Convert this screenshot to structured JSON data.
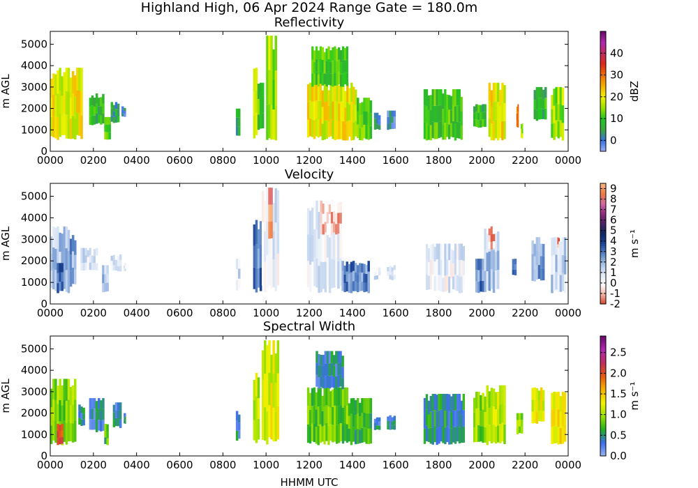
{
  "figure": {
    "title": "Highland High, 06 Apr 2024 Range Gate = 180.0m",
    "xlabel": "HHMM UTC"
  },
  "chart_data": [
    {
      "type": "heatmap",
      "title": "Reflectivity",
      "ylabel": "m AGL",
      "xlabel": "",
      "xtick_labels": [
        "0000",
        "0200",
        "0400",
        "0600",
        "0800",
        "1000",
        "1200",
        "1400",
        "1600",
        "1800",
        "2000",
        "2200",
        "0000"
      ],
      "ytick_labels": [
        "0",
        "1000",
        "2000",
        "3000",
        "4000",
        "5000"
      ],
      "xlim_hours": [
        0,
        24
      ],
      "ylim": [
        0,
        5600
      ],
      "colorbar": {
        "label": "dBZ",
        "ticks": [
          "0",
          "10",
          "20",
          "30",
          "40"
        ],
        "range": [
          -5,
          50
        ],
        "colormap": [
          "#9bb3f5",
          "#3b6fe8",
          "#3aa83a",
          "#22c722",
          "#9ae000",
          "#f2f200",
          "#f5b000",
          "#f07000",
          "#dd2a1a",
          "#c02d5e",
          "#b02ab0",
          "#6a0a6a"
        ]
      },
      "cells": [
        {
          "t0": 0.0,
          "t1": 1.5,
          "h0": 500,
          "h1": 3900,
          "v": 20
        },
        {
          "t0": 1.8,
          "t1": 2.5,
          "h0": 1200,
          "h1": 2700,
          "v": 8
        },
        {
          "t0": 2.5,
          "t1": 2.8,
          "h0": 500,
          "h1": 1600,
          "v": 12
        },
        {
          "t0": 2.8,
          "t1": 3.2,
          "h0": 1300,
          "h1": 2300,
          "v": 5
        },
        {
          "t0": 3.3,
          "t1": 3.5,
          "h0": 1600,
          "h1": 2100,
          "v": 0
        },
        {
          "t0": 8.6,
          "t1": 8.8,
          "h0": 700,
          "h1": 2200,
          "v": 5
        },
        {
          "t0": 9.4,
          "t1": 9.6,
          "h0": 500,
          "h1": 3900,
          "v": 15
        },
        {
          "t0": 9.6,
          "t1": 9.9,
          "h0": 900,
          "h1": 3200,
          "v": 10
        },
        {
          "t0": 10.0,
          "t1": 10.5,
          "h0": 500,
          "h1": 5400,
          "v": 15
        },
        {
          "t0": 11.9,
          "t1": 14.2,
          "h0": 500,
          "h1": 3200,
          "v": 20
        },
        {
          "t0": 12.1,
          "t1": 13.8,
          "h0": 3000,
          "h1": 4900,
          "v": 10
        },
        {
          "t0": 14.2,
          "t1": 14.9,
          "h0": 500,
          "h1": 2500,
          "v": 12
        },
        {
          "t0": 15.0,
          "t1": 15.3,
          "h0": 1000,
          "h1": 1800,
          "v": 3
        },
        {
          "t0": 15.6,
          "t1": 16.0,
          "h0": 1000,
          "h1": 1900,
          "v": 0
        },
        {
          "t0": 17.3,
          "t1": 19.1,
          "h0": 500,
          "h1": 2900,
          "v": 10
        },
        {
          "t0": 19.6,
          "t1": 20.2,
          "h0": 1100,
          "h1": 2200,
          "v": 8
        },
        {
          "t0": 20.3,
          "t1": 21.1,
          "h0": 500,
          "h1": 3200,
          "v": 20
        },
        {
          "t0": 21.6,
          "t1": 21.7,
          "h0": 1100,
          "h1": 2200,
          "v": 30
        },
        {
          "t0": 21.8,
          "t1": 21.9,
          "h0": 600,
          "h1": 1300,
          "v": 15
        },
        {
          "t0": 22.4,
          "t1": 23.0,
          "h0": 1400,
          "h1": 3000,
          "v": 8
        },
        {
          "t0": 23.2,
          "t1": 23.8,
          "h0": 500,
          "h1": 3000,
          "v": 15
        }
      ]
    },
    {
      "type": "heatmap",
      "title": "Velocity",
      "ylabel": "m AGL",
      "xlabel": "",
      "xtick_labels": [
        "0000",
        "0200",
        "0400",
        "0600",
        "0800",
        "1000",
        "1200",
        "1400",
        "1600",
        "1800",
        "2000",
        "2200",
        "0000"
      ],
      "ytick_labels": [
        "0",
        "1000",
        "2000",
        "3000",
        "4000",
        "5000"
      ],
      "xlim_hours": [
        0,
        24
      ],
      "ylim": [
        0,
        5600
      ],
      "colorbar": {
        "label": "m s⁻¹",
        "ticks": [
          "-2",
          "-1",
          "0",
          "1",
          "2",
          "3",
          "4",
          "5",
          "6",
          "7",
          "8",
          "9"
        ],
        "range": [
          -2,
          9.5
        ],
        "colormap": [
          "#d9422a",
          "#f3b8aa",
          "#ffffff",
          "#dce6f5",
          "#a8c1e6",
          "#5a85c6",
          "#1c4598",
          "#0d2a66",
          "#4a2260",
          "#8c2a80",
          "#d26aa6",
          "#ee7a40",
          "#f8b888"
        ]
      },
      "cells": [
        {
          "t0": 0.0,
          "t1": 0.9,
          "h0": 500,
          "h1": 3600,
          "v": 1.5
        },
        {
          "t0": 0.3,
          "t1": 0.6,
          "h0": 500,
          "h1": 1900,
          "v": 3.2
        },
        {
          "t0": 0.9,
          "t1": 1.2,
          "h0": 800,
          "h1": 3200,
          "v": 2.2
        },
        {
          "t0": 1.4,
          "t1": 2.2,
          "h0": 1500,
          "h1": 2600,
          "v": 0.8
        },
        {
          "t0": 2.4,
          "t1": 2.7,
          "h0": 500,
          "h1": 1800,
          "v": 1.5
        },
        {
          "t0": 2.8,
          "t1": 3.3,
          "h0": 1500,
          "h1": 2300,
          "v": 0.6
        },
        {
          "t0": 3.4,
          "t1": 3.5,
          "h0": 1500,
          "h1": 1900,
          "v": 0.6
        },
        {
          "t0": 8.6,
          "t1": 8.8,
          "h0": 600,
          "h1": 2100,
          "v": 0.8
        },
        {
          "t0": 9.4,
          "t1": 9.8,
          "h0": 500,
          "h1": 3900,
          "v": 3.0
        },
        {
          "t0": 9.8,
          "t1": 10.6,
          "h0": 500,
          "h1": 5400,
          "v": 0.6
        },
        {
          "t0": 10.1,
          "t1": 10.3,
          "h0": 3000,
          "h1": 5400,
          "v": 8.5
        },
        {
          "t0": 11.9,
          "t1": 13.5,
          "h0": 500,
          "h1": 4800,
          "v": 0.7
        },
        {
          "t0": 13.5,
          "t1": 14.8,
          "h0": 500,
          "h1": 2000,
          "v": 2.8
        },
        {
          "t0": 12.5,
          "t1": 13.5,
          "h0": 3200,
          "h1": 4800,
          "v": -0.6
        },
        {
          "t0": 15.0,
          "t1": 15.3,
          "h0": 1100,
          "h1": 1700,
          "v": 0.8
        },
        {
          "t0": 15.6,
          "t1": 16.0,
          "h0": 1100,
          "h1": 1800,
          "v": 0.8
        },
        {
          "t0": 17.4,
          "t1": 19.2,
          "h0": 500,
          "h1": 2800,
          "v": 0.6
        },
        {
          "t0": 19.7,
          "t1": 20.1,
          "h0": 500,
          "h1": 2100,
          "v": 2.8
        },
        {
          "t0": 20.1,
          "t1": 20.8,
          "h0": 500,
          "h1": 3500,
          "v": 1.6
        },
        {
          "t0": 20.3,
          "t1": 20.6,
          "h0": 2500,
          "h1": 3600,
          "v": -0.8
        },
        {
          "t0": 21.4,
          "t1": 21.6,
          "h0": 1300,
          "h1": 2100,
          "v": 3.0
        },
        {
          "t0": 22.3,
          "t1": 22.9,
          "h0": 1000,
          "h1": 3100,
          "v": 2.4
        },
        {
          "t0": 23.2,
          "t1": 23.9,
          "h0": 500,
          "h1": 3100,
          "v": 1.2
        },
        {
          "t0": 23.5,
          "t1": 23.6,
          "h0": 2600,
          "h1": 3100,
          "v": -1.5
        }
      ]
    },
    {
      "type": "heatmap",
      "title": "Spectral Width",
      "ylabel": "m AGL",
      "xlabel": "HHMM UTC",
      "xtick_labels": [
        "0000",
        "0200",
        "0400",
        "0600",
        "0800",
        "1000",
        "1200",
        "1400",
        "1600",
        "1800",
        "2000",
        "2200",
        "0000"
      ],
      "ytick_labels": [
        "0",
        "1000",
        "2000",
        "3000",
        "4000",
        "5000"
      ],
      "xlim_hours": [
        0,
        24
      ],
      "ylim": [
        0,
        5600
      ],
      "colorbar": {
        "label": "m s⁻¹",
        "ticks": [
          "0.0",
          "0.5",
          "1.0",
          "1.5",
          "2.0",
          "2.5"
        ],
        "range": [
          0,
          2.9
        ],
        "colormap": [
          "#9bb3f5",
          "#3b6fe8",
          "#22b022",
          "#9ae000",
          "#f2f200",
          "#f5b000",
          "#e85a10",
          "#c02d5e",
          "#b02ab0",
          "#6a0a6a"
        ]
      },
      "cells": [
        {
          "t0": 0.0,
          "t1": 1.2,
          "h0": 500,
          "h1": 3600,
          "v": 0.9
        },
        {
          "t0": 0.3,
          "t1": 0.6,
          "h0": 500,
          "h1": 1500,
          "v": 2.1
        },
        {
          "t0": 1.3,
          "t1": 1.6,
          "h0": 1400,
          "h1": 2400,
          "v": 0.4
        },
        {
          "t0": 1.8,
          "t1": 2.5,
          "h0": 1100,
          "h1": 2700,
          "v": 0.4
        },
        {
          "t0": 2.5,
          "t1": 2.7,
          "h0": 500,
          "h1": 1500,
          "v": 0.7
        },
        {
          "t0": 2.9,
          "t1": 3.3,
          "h0": 1300,
          "h1": 2500,
          "v": 0.4
        },
        {
          "t0": 3.4,
          "t1": 3.5,
          "h0": 1500,
          "h1": 2000,
          "v": 0.4
        },
        {
          "t0": 8.6,
          "t1": 8.8,
          "h0": 700,
          "h1": 2100,
          "v": 0.4
        },
        {
          "t0": 9.4,
          "t1": 9.7,
          "h0": 500,
          "h1": 3900,
          "v": 1.1
        },
        {
          "t0": 9.8,
          "t1": 10.6,
          "h0": 500,
          "h1": 5400,
          "v": 1.2
        },
        {
          "t0": 11.9,
          "t1": 13.8,
          "h0": 500,
          "h1": 3200,
          "v": 0.8
        },
        {
          "t0": 12.3,
          "t1": 13.6,
          "h0": 3100,
          "h1": 4900,
          "v": 0.4
        },
        {
          "t0": 13.8,
          "t1": 14.9,
          "h0": 500,
          "h1": 2700,
          "v": 0.7
        },
        {
          "t0": 15.0,
          "t1": 15.3,
          "h0": 1200,
          "h1": 1800,
          "v": 0.4
        },
        {
          "t0": 15.6,
          "t1": 16.0,
          "h0": 1200,
          "h1": 1900,
          "v": 0.4
        },
        {
          "t0": 17.3,
          "t1": 19.2,
          "h0": 500,
          "h1": 2900,
          "v": 0.5
        },
        {
          "t0": 19.6,
          "t1": 20.2,
          "h0": 500,
          "h1": 3000,
          "v": 0.9
        },
        {
          "t0": 20.2,
          "t1": 21.1,
          "h0": 500,
          "h1": 3300,
          "v": 1.1
        },
        {
          "t0": 21.6,
          "t1": 21.9,
          "h0": 1000,
          "h1": 2000,
          "v": 1.0
        },
        {
          "t0": 22.3,
          "t1": 22.9,
          "h0": 1500,
          "h1": 3200,
          "v": 1.2
        },
        {
          "t0": 23.2,
          "t1": 23.9,
          "h0": 500,
          "h1": 3000,
          "v": 1.4
        }
      ]
    }
  ]
}
